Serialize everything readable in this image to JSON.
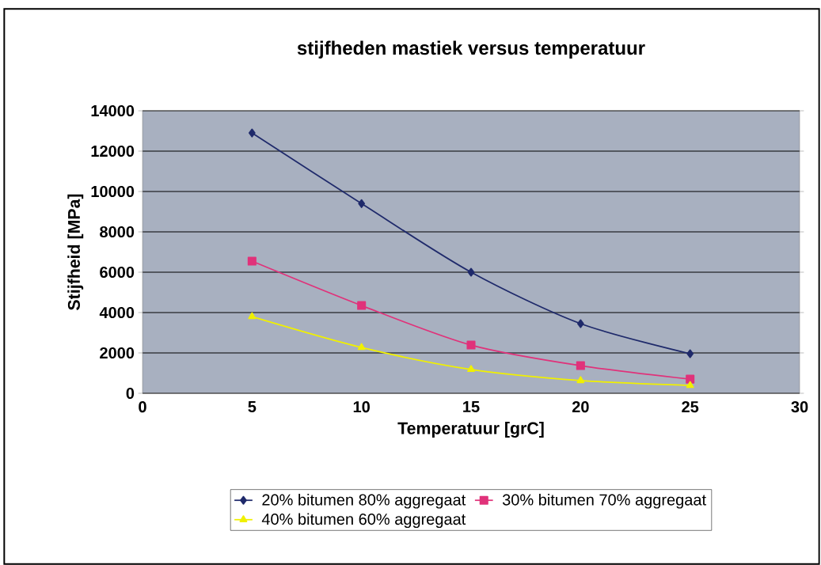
{
  "chart_data": {
    "type": "line",
    "title": "stijfheden mastiek versus temperatuur",
    "xlabel": "Temperatuur [grC]",
    "ylabel": "Stijfheid [MPa]",
    "x": [
      5,
      10,
      15,
      20,
      25
    ],
    "series": [
      {
        "name": "20% bitumen 80% aggregaat",
        "color": "#1f2a6b",
        "marker": "diamond",
        "values": [
          12900,
          9400,
          6000,
          3450,
          1960
        ]
      },
      {
        "name": "30% bitumen 70% aggregaat",
        "color": "#e0327a",
        "marker": "square",
        "values": [
          6550,
          4350,
          2390,
          1370,
          700
        ]
      },
      {
        "name": "40% bitumen 60% aggregaat",
        "color": "#f0f000",
        "marker": "triangle",
        "values": [
          3800,
          2270,
          1180,
          630,
          390
        ]
      }
    ],
    "xlim": [
      0,
      30
    ],
    "xticks": [
      0,
      5,
      10,
      15,
      20,
      25,
      30
    ],
    "ylim": [
      0,
      14000
    ],
    "yticks": [
      0,
      2000,
      4000,
      6000,
      8000,
      10000,
      12000,
      14000
    ],
    "grid": "y",
    "legend": "bottom",
    "line_style": "solid"
  }
}
